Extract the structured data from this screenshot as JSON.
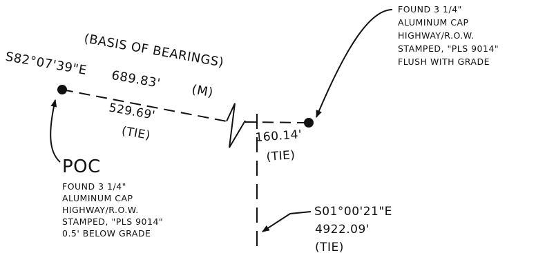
{
  "basis_of_bearings": {
    "caption": "(BASIS OF BEARINGS)",
    "bearing": "S82°07'39\"E",
    "distance": "689.83'",
    "measured": "(M)"
  },
  "tie_west": {
    "distance": "529.69'",
    "label": "(TIE)"
  },
  "tie_east": {
    "distance": "160.14'",
    "label": "(TIE)"
  },
  "tie_south": {
    "bearing": "S01°00'21\"E",
    "distance": "4922.09'",
    "label": "(TIE)"
  },
  "poc": {
    "title": "POC",
    "lines": [
      "FOUND 3 1/4\"",
      "ALUMINUM CAP",
      "HIGHWAY/R.O.W.",
      "STAMPED, \"PLS 9014\"",
      "0.5' BELOW GRADE"
    ]
  },
  "found_cap_east": {
    "lines": [
      "FOUND 3 1/4\"",
      "ALUMINUM CAP",
      "HIGHWAY/R.O.W.",
      "STAMPED, \"PLS 9014\"",
      "FLUSH WITH GRADE"
    ]
  }
}
